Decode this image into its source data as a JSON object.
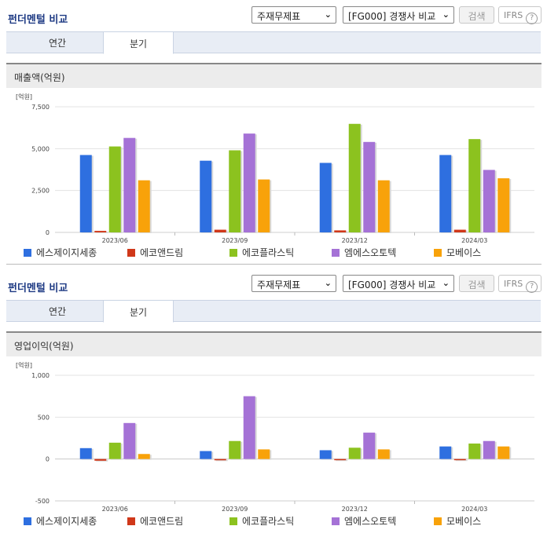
{
  "colors": {
    "series": [
      "#2e6fe0",
      "#d0381a",
      "#8cc21f",
      "#a572d6",
      "#f8a20a"
    ]
  },
  "panels": [
    {
      "title": "펀더멘털 비교",
      "select1": "주재무제표",
      "select2": "[FG000] 경쟁사 비교",
      "search_button": "검색",
      "ifrs_label": "IFRS",
      "ifrs_help": "?",
      "tabs": [
        "연간",
        "분기"
      ],
      "active_tab": 1,
      "metric_title": "매출액(억원)"
    },
    {
      "title": "펀더멘털 비교",
      "select1": "주재무제표",
      "select2": "[FG000] 경쟁사 비교",
      "search_button": "검색",
      "ifrs_label": "IFRS",
      "ifrs_help": "?",
      "tabs": [
        "연간",
        "분기"
      ],
      "active_tab": 1,
      "metric_title": "영업이익(억원)"
    }
  ],
  "chart_data": [
    {
      "type": "bar",
      "unit_label": "[억원]",
      "categories": [
        "2023/06",
        "2023/09",
        "2023/12",
        "2024/03"
      ],
      "ylim": [
        0,
        7500
      ],
      "yticks": [
        0,
        2500,
        5000,
        7500
      ],
      "ytick_labels": [
        "0",
        "2,500",
        "5,000",
        "7,500"
      ],
      "series": [
        {
          "name": "에스제이지세종",
          "values": [
            4620,
            4280,
            4150,
            4620
          ]
        },
        {
          "name": "에코앤드림",
          "values": [
            90,
            160,
            120,
            160
          ]
        },
        {
          "name": "에코플라스틱",
          "values": [
            5130,
            4900,
            6480,
            5570
          ]
        },
        {
          "name": "엠에스오토텍",
          "values": [
            5640,
            5900,
            5400,
            3730
          ]
        },
        {
          "name": "모베이스",
          "values": [
            3110,
            3160,
            3110,
            3230
          ]
        }
      ]
    },
    {
      "type": "bar",
      "unit_label": "[억원]",
      "categories": [
        "2023/06",
        "2023/09",
        "2023/12",
        "2024/03"
      ],
      "ylim": [
        -500,
        1000
      ],
      "yticks": [
        -500,
        0,
        500,
        1000
      ],
      "ytick_labels": [
        "-500",
        "0",
        "500",
        "1,000"
      ],
      "series": [
        {
          "name": "에스제이지세종",
          "values": [
            130,
            95,
            105,
            150
          ]
        },
        {
          "name": "에코앤드림",
          "values": [
            -20,
            -15,
            0,
            0
          ]
        },
        {
          "name": "에코플라스틱",
          "values": [
            195,
            215,
            135,
            185
          ]
        },
        {
          "name": "엠에스오토텍",
          "values": [
            430,
            750,
            315,
            215
          ]
        },
        {
          "name": "모베이스",
          "values": [
            60,
            115,
            115,
            150
          ]
        }
      ]
    }
  ]
}
